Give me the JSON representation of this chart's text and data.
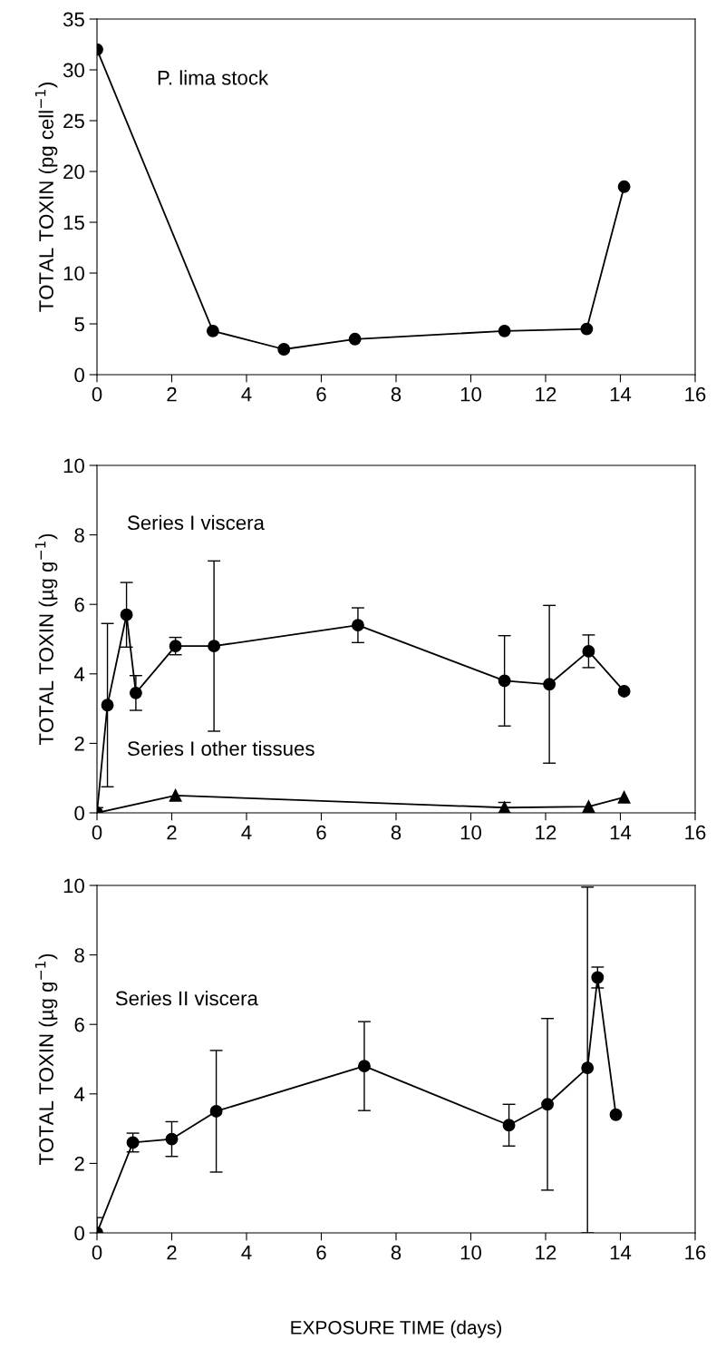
{
  "chart_data": [
    {
      "type": "line",
      "ylabel": "TOTAL TOXIN (pg cell$^{−1}$)",
      "xlim": [
        0,
        16
      ],
      "xticks": [
        0,
        2,
        4,
        6,
        8,
        10,
        12,
        14,
        16
      ],
      "ylim": [
        0,
        35
      ],
      "yticks": [
        0,
        5,
        10,
        15,
        20,
        25,
        30,
        35
      ],
      "marker": "circle",
      "line_style": "solid",
      "grid": false,
      "series": [
        {
          "name": "P. lima stock",
          "color": "#000000",
          "x": [
            0,
            3.1,
            5,
            6.9,
            10.9,
            13.1,
            14.1
          ],
          "values": [
            32,
            4.3,
            2.5,
            3.5,
            4.3,
            4.5,
            18.5
          ]
        }
      ]
    },
    {
      "type": "line",
      "ylabel": "TOTAL TOXIN (µg g$^{−1}$)",
      "annotations": [
        "Series I viscera",
        "Series I other tissues"
      ],
      "xlim": [
        0,
        16
      ],
      "xticks": [
        0,
        2,
        4,
        6,
        8,
        10,
        12,
        14,
        16
      ],
      "ylim": [
        0,
        10
      ],
      "yticks": [
        0,
        2,
        4,
        6,
        8,
        10
      ],
      "line_style": "solid",
      "grid": false,
      "series": [
        {
          "color": "#000000",
          "marker": "circle",
          "x": [
            0,
            0.28,
            0.79,
            1.04,
            2.1,
            3.13,
            6.98,
            10.9,
            12.1,
            13.15,
            14.1
          ],
          "values": [
            0,
            3.1,
            5.7,
            3.45,
            4.8,
            4.8,
            5.4,
            3.8,
            3.7,
            4.65,
            3.5
          ],
          "errors": [
            0.15,
            2.35,
            0.93,
            0.5,
            0.25,
            2.45,
            0.5,
            1.3,
            2.27,
            0.47,
            null
          ]
        },
        {
          "color": "#000000",
          "marker": "triangle",
          "x": [
            0,
            2.1,
            10.9,
            13.15,
            14.1
          ],
          "values": [
            0,
            0.5,
            0.15,
            0.18,
            0.45
          ],
          "errors": [
            null,
            null,
            0.15,
            null,
            null
          ]
        }
      ]
    },
    {
      "type": "line",
      "xlabel": "EXPOSURE TIME (days)",
      "ylabel": "TOTAL TOXIN (µg g$^{−1}$)",
      "xlim": [
        0,
        16
      ],
      "xticks": [
        0,
        2,
        4,
        6,
        8,
        10,
        12,
        14,
        16
      ],
      "ylim": [
        0,
        10
      ],
      "yticks": [
        0,
        2,
        4,
        6,
        8,
        10
      ],
      "marker": "circle",
      "line_style": "solid",
      "grid": false,
      "series": [
        {
          "name": "Series II viscera",
          "color": "#000000",
          "x": [
            0,
            0.96,
            2.0,
            3.19,
            7.15,
            11.02,
            12.05,
            13.12,
            13.39,
            13.88
          ],
          "values": [
            0,
            2.6,
            2.7,
            3.5,
            4.8,
            3.1,
            3.7,
            4.75,
            7.35,
            3.4
          ],
          "errors": [
            0.44,
            0.27,
            0.5,
            1.75,
            1.28,
            0.6,
            2.47,
            [
              0,
              9.95
            ],
            0.3,
            null
          ]
        }
      ]
    }
  ]
}
